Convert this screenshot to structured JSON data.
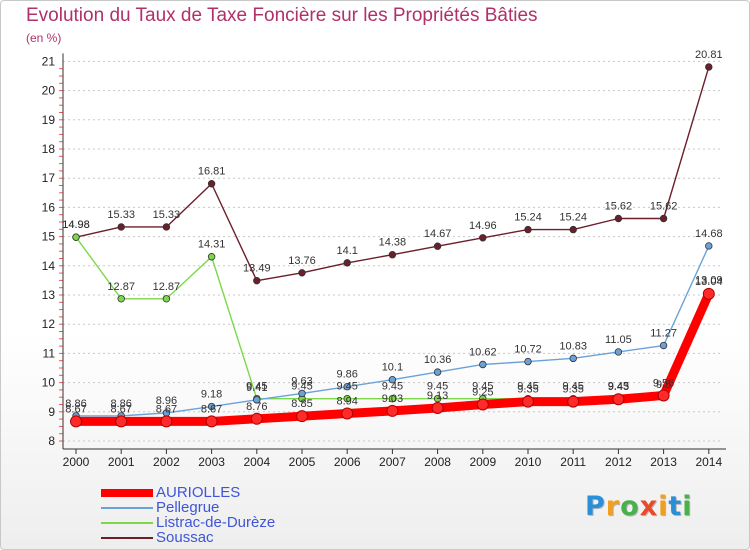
{
  "title": "Evolution du Taux de Taxe Foncière sur les Propriétés Bâties",
  "subtitle": "(en %)",
  "brand": {
    "letters": [
      "P",
      "r",
      "o",
      "x",
      "i",
      "t",
      "i"
    ],
    "colors": [
      "#2a8fd8",
      "#f0a020",
      "#4ab04a",
      "#e84a2a",
      "#f0a020",
      "#2a8fd8",
      "#4ab04a"
    ]
  },
  "chart_data": {
    "type": "line",
    "title": "Evolution du Taux de Taxe Foncière sur les Propriétés Bâties",
    "ylabel": "(en %)",
    "xlabel": "",
    "ylim": [
      8,
      21
    ],
    "yticks": [
      "8",
      "9",
      "10",
      "11",
      "12",
      "13",
      "14",
      "15",
      "16",
      "17",
      "18",
      "19",
      "20",
      "21"
    ],
    "categories": [
      "2000",
      "2001",
      "2002",
      "2003",
      "2004",
      "2005",
      "2006",
      "2007",
      "2008",
      "2009",
      "2010",
      "2011",
      "2012",
      "2013",
      "2014"
    ],
    "grid": "horizontal dashed",
    "legend_position": "bottom-left",
    "series": [
      {
        "name": "AURIOLLES",
        "color": "#ff0000",
        "values": [
          8.67,
          8.67,
          8.67,
          8.67,
          8.76,
          8.85,
          8.94,
          9.03,
          9.13,
          9.25,
          9.35,
          9.35,
          9.43,
          9.56,
          13.04
        ],
        "labels": [
          "8.67",
          "8.67",
          "8.67",
          "8.67",
          "8.76",
          "8.85",
          "8.94",
          "9.03",
          "9.13",
          "9.25",
          "9.35",
          "9.35",
          "9.43",
          "9.56",
          "13.04"
        ]
      },
      {
        "name": "Pellegrue",
        "color": "#6aa2d8",
        "values": [
          8.86,
          8.86,
          8.96,
          9.18,
          9.41,
          9.63,
          9.86,
          10.1,
          10.36,
          10.62,
          10.72,
          10.83,
          11.05,
          11.27,
          14.68
        ],
        "labels": [
          "8.86",
          "8.86",
          "8.96",
          "9.18",
          "9.41",
          "9.63",
          "9.86",
          "10.1",
          "10.36",
          "10.62",
          "10.72",
          "10.83",
          "11.05",
          "11.27",
          "14.68"
        ]
      },
      {
        "name": "Listrac-de-Durèze",
        "color": "#7cd84a",
        "values": [
          14.98,
          12.87,
          12.87,
          14.31,
          9.45,
          9.45,
          9.45,
          9.45,
          9.45,
          9.45,
          9.45,
          9.45,
          9.45,
          9.5,
          13.09
        ],
        "labels": [
          "14.98",
          "12.87",
          "12.87",
          "14.31",
          "9.45",
          "9.45",
          "9.45",
          "9.45",
          "9.45",
          "9.45",
          "9.45",
          "9.45",
          "9.45",
          "9.5",
          "13.09"
        ]
      },
      {
        "name": "Soussac",
        "color": "#6b1f2a",
        "values": [
          14.98,
          15.33,
          15.33,
          16.81,
          13.49,
          13.76,
          14.1,
          14.38,
          14.67,
          14.96,
          15.24,
          15.24,
          15.62,
          15.62,
          20.81
        ],
        "labels": [
          "14.98",
          "15.33",
          "15.33",
          "16.81",
          "13.49",
          "13.76",
          "14.1",
          "14.38",
          "14.67",
          "14.96",
          "15.24",
          "15.24",
          "15.62",
          "15.62",
          "20.81"
        ]
      }
    ]
  }
}
